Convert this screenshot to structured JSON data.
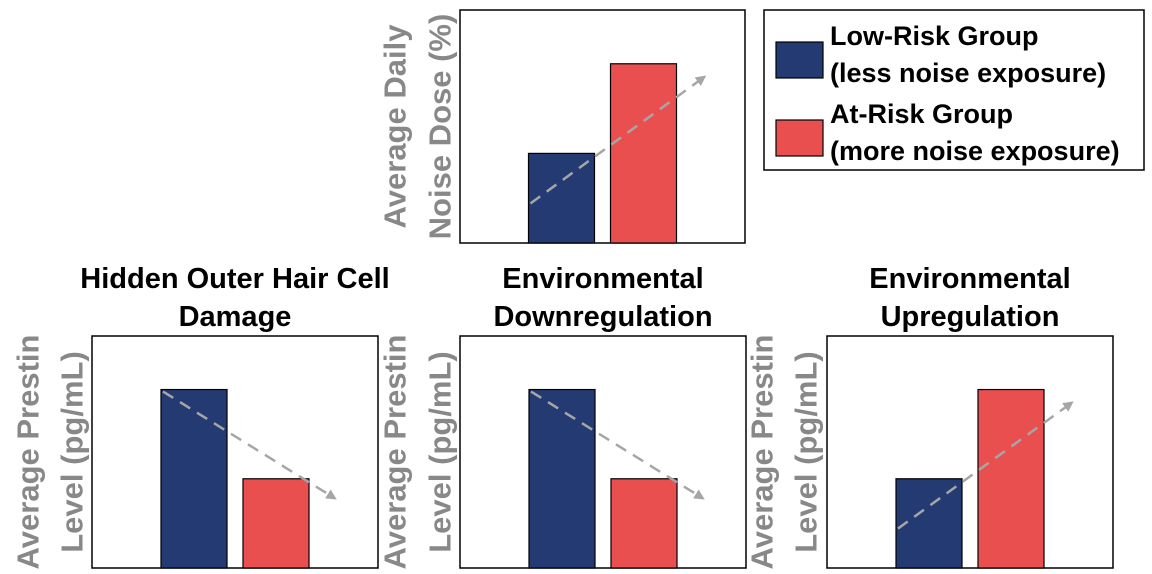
{
  "colors": {
    "low_risk": "#233a73",
    "at_risk": "#ea4f50",
    "trend_arrow": "#a6a6a6",
    "axis_label": "#888888"
  },
  "legend": {
    "placement": "top-right",
    "entries": [
      {
        "line1": "Low-Risk Group",
        "line2": "(less noise exposure)"
      },
      {
        "line1": "At-Risk Group",
        "line2": "(more noise exposure)"
      }
    ]
  },
  "chart_data": [
    {
      "type": "bar",
      "title_lines": [],
      "ylabel_lines": [
        "Average Daily",
        "Noise Dose (%)"
      ],
      "categories": [
        "Low-Risk Group",
        "At-Risk Group"
      ],
      "values": [
        0.5,
        1.0
      ],
      "ylim": [
        0,
        1.3
      ],
      "trend": "increasing",
      "grid": false
    },
    {
      "type": "bar",
      "title_lines": [
        "Hidden Outer Hair Cell",
        "Damage"
      ],
      "ylabel_lines": [
        "Average Prestin",
        "Level (pg/mL)"
      ],
      "categories": [
        "Low-Risk Group",
        "At-Risk Group"
      ],
      "values": [
        1.0,
        0.5
      ],
      "ylim": [
        0,
        1.3
      ],
      "trend": "decreasing",
      "grid": false
    },
    {
      "type": "bar",
      "title_lines": [
        "Environmental",
        "Downregulation"
      ],
      "ylabel_lines": [
        "Average Prestin",
        "Level (pg/mL)"
      ],
      "categories": [
        "Low-Risk Group",
        "At-Risk Group"
      ],
      "values": [
        1.0,
        0.5
      ],
      "ylim": [
        0,
        1.3
      ],
      "trend": "decreasing",
      "grid": false
    },
    {
      "type": "bar",
      "title_lines": [
        "Environmental",
        "Upregulation"
      ],
      "ylabel_lines": [
        "Average Prestin",
        "Level (pg/mL)"
      ],
      "categories": [
        "Low-Risk Group",
        "At-Risk Group"
      ],
      "values": [
        0.5,
        1.0
      ],
      "ylim": [
        0,
        1.3
      ],
      "trend": "increasing",
      "grid": false
    }
  ]
}
